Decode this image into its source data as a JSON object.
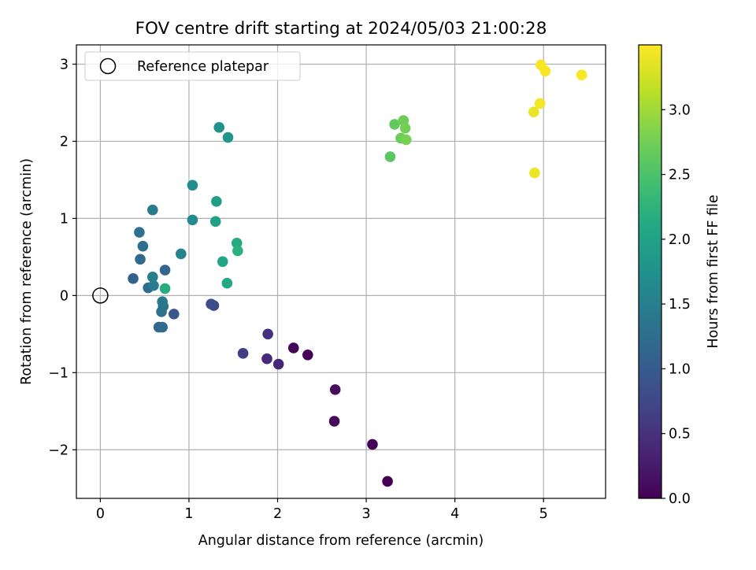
{
  "chart_data": {
    "type": "scatter",
    "title": "FOV centre drift starting at 2024/05/03 21:00:28",
    "xlabel": "Angular distance from reference (arcmin)",
    "ylabel": "Rotation from reference (arcmin)",
    "xlim": [
      -0.27,
      5.7
    ],
    "ylim": [
      -2.63,
      3.25
    ],
    "xticks": [
      0,
      1,
      2,
      3,
      4,
      5
    ],
    "xtick_labels": [
      "0",
      "1",
      "2",
      "3",
      "4",
      "5"
    ],
    "yticks": [
      -2,
      -1,
      0,
      1,
      2,
      3
    ],
    "ytick_labels": [
      "−2",
      "−1",
      "0",
      "1",
      "2",
      "3"
    ],
    "grid": true,
    "legend": {
      "position": "top-left",
      "entries": [
        "Reference platepar"
      ]
    },
    "reference_point": {
      "x": 0,
      "y": 0,
      "label": "Reference platepar",
      "marker": "open-circle"
    },
    "colorbar": {
      "label": "Hours from first FF file",
      "range": [
        0.0,
        3.5
      ],
      "ticks": [
        0.0,
        0.5,
        1.0,
        1.5,
        2.0,
        2.5,
        3.0
      ],
      "tick_labels": [
        "0.0",
        "0.5",
        "1.0",
        "1.5",
        "2.0",
        "2.5",
        "3.0"
      ],
      "colormap": "viridis"
    },
    "points": [
      {
        "x": 3.24,
        "y": -2.41,
        "hours": 0.0
      },
      {
        "x": 3.07,
        "y": -1.93,
        "hours": 0.03
      },
      {
        "x": 2.64,
        "y": -1.63,
        "hours": 0.08
      },
      {
        "x": 2.65,
        "y": -1.22,
        "hours": 0.11
      },
      {
        "x": 2.34,
        "y": -0.77,
        "hours": 0.02
      },
      {
        "x": 2.18,
        "y": -0.68,
        "hours": 0.05
      },
      {
        "x": 2.01,
        "y": -0.89,
        "hours": 0.38
      },
      {
        "x": 1.88,
        "y": -0.82,
        "hours": 0.42
      },
      {
        "x": 1.89,
        "y": -0.5,
        "hours": 0.48
      },
      {
        "x": 1.61,
        "y": -0.75,
        "hours": 0.62
      },
      {
        "x": 1.28,
        "y": -0.13,
        "hours": 0.75
      },
      {
        "x": 1.25,
        "y": -0.11,
        "hours": 0.8
      },
      {
        "x": 0.83,
        "y": -0.24,
        "hours": 0.95
      },
      {
        "x": 0.66,
        "y": -0.41,
        "hours": 1.15
      },
      {
        "x": 0.7,
        "y": -0.41,
        "hours": 1.2
      },
      {
        "x": 0.69,
        "y": -0.21,
        "hours": 1.3
      },
      {
        "x": 0.71,
        "y": -0.14,
        "hours": 1.35
      },
      {
        "x": 0.7,
        "y": -0.08,
        "hours": 1.4
      },
      {
        "x": 0.37,
        "y": 0.22,
        "hours": 1.1
      },
      {
        "x": 0.54,
        "y": 0.1,
        "hours": 1.25
      },
      {
        "x": 0.6,
        "y": 0.13,
        "hours": 1.45
      },
      {
        "x": 0.59,
        "y": 0.24,
        "hours": 1.5
      },
      {
        "x": 0.73,
        "y": 0.33,
        "hours": 1.15
      },
      {
        "x": 0.45,
        "y": 0.47,
        "hours": 1.2
      },
      {
        "x": 0.48,
        "y": 0.64,
        "hours": 1.25
      },
      {
        "x": 0.44,
        "y": 0.82,
        "hours": 1.3
      },
      {
        "x": 0.59,
        "y": 1.11,
        "hours": 1.45
      },
      {
        "x": 0.91,
        "y": 0.54,
        "hours": 1.55
      },
      {
        "x": 0.73,
        "y": 0.09,
        "hours": 2.15
      },
      {
        "x": 1.04,
        "y": 0.98,
        "hours": 1.65
      },
      {
        "x": 1.04,
        "y": 1.43,
        "hours": 1.7
      },
      {
        "x": 1.34,
        "y": 2.18,
        "hours": 1.75
      },
      {
        "x": 1.44,
        "y": 2.05,
        "hours": 1.8
      },
      {
        "x": 1.31,
        "y": 1.22,
        "hours": 1.95
      },
      {
        "x": 1.3,
        "y": 0.96,
        "hours": 2.0
      },
      {
        "x": 1.38,
        "y": 0.44,
        "hours": 2.05
      },
      {
        "x": 1.43,
        "y": 0.16,
        "hours": 2.1
      },
      {
        "x": 1.54,
        "y": 0.68,
        "hours": 2.15
      },
      {
        "x": 1.55,
        "y": 0.58,
        "hours": 2.2
      },
      {
        "x": 3.27,
        "y": 1.8,
        "hours": 2.6
      },
      {
        "x": 3.32,
        "y": 2.22,
        "hours": 2.65
      },
      {
        "x": 3.39,
        "y": 2.04,
        "hours": 2.7
      },
      {
        "x": 3.42,
        "y": 2.27,
        "hours": 2.72
      },
      {
        "x": 3.44,
        "y": 2.17,
        "hours": 2.75
      },
      {
        "x": 3.45,
        "y": 2.02,
        "hours": 2.78
      },
      {
        "x": 4.89,
        "y": 2.38,
        "hours": 3.4
      },
      {
        "x": 4.9,
        "y": 1.59,
        "hours": 3.42
      },
      {
        "x": 4.96,
        "y": 2.49,
        "hours": 3.44
      },
      {
        "x": 4.97,
        "y": 2.99,
        "hours": 3.46
      },
      {
        "x": 5.02,
        "y": 2.91,
        "hours": 3.47
      },
      {
        "x": 5.43,
        "y": 2.86,
        "hours": 3.48
      }
    ]
  }
}
